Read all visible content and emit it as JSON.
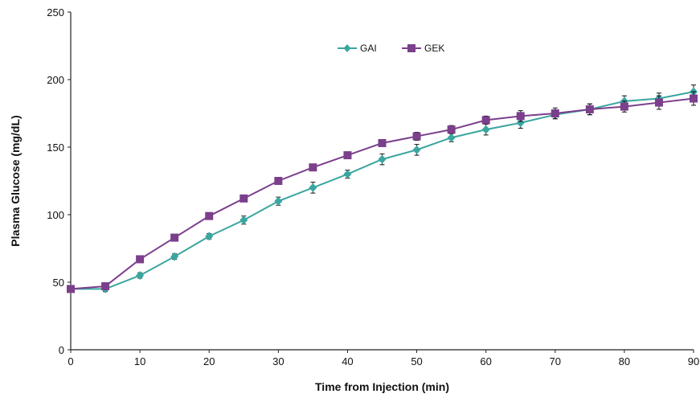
{
  "chart_data": {
    "type": "line",
    "title": "",
    "xlabel": "Time from Injection (min)",
    "ylabel": "Plasma Glucose (mg/dL)",
    "xlim": [
      0,
      90
    ],
    "ylim": [
      0,
      250
    ],
    "xticks": [
      0,
      10,
      20,
      30,
      40,
      50,
      60,
      70,
      80,
      90
    ],
    "yticks": [
      0,
      50,
      100,
      150,
      200,
      250
    ],
    "grid": false,
    "legend_position": "top-center",
    "x": [
      0,
      5,
      10,
      15,
      20,
      25,
      30,
      35,
      40,
      45,
      50,
      55,
      60,
      65,
      70,
      75,
      80,
      85,
      90
    ],
    "series": [
      {
        "name": "GAI",
        "color": "#3aa6a0",
        "marker": "diamond",
        "values": [
          45,
          45,
          55,
          69,
          84,
          96,
          110,
          120,
          130,
          141,
          148,
          157,
          163,
          168,
          174,
          178,
          184,
          186,
          191
        ],
        "errors": [
          2,
          2,
          2,
          2,
          2,
          3,
          3,
          4,
          3,
          4,
          4,
          3,
          4,
          4,
          3,
          4,
          4,
          4,
          5
        ]
      },
      {
        "name": "GEK",
        "color": "#7b3f8c",
        "marker": "square",
        "values": [
          45,
          47,
          67,
          83,
          99,
          112,
          125,
          135,
          144,
          153,
          158,
          163,
          170,
          173,
          175,
          178,
          180,
          183,
          186
        ],
        "errors": [
          2,
          2,
          2,
          2,
          2,
          2,
          2,
          2,
          2,
          2,
          3,
          3,
          3,
          4,
          4,
          4,
          4,
          5,
          5
        ]
      }
    ]
  }
}
